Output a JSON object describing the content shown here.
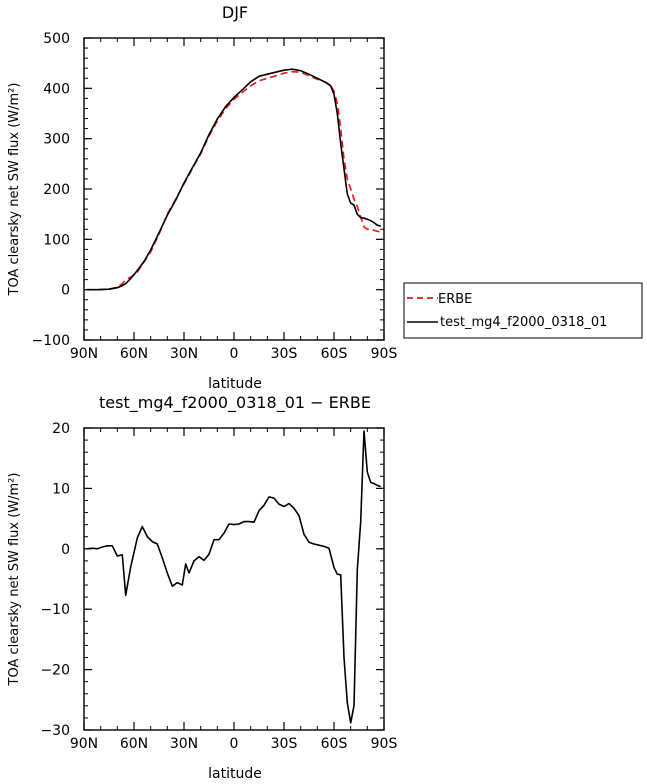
{
  "chart_data": [
    {
      "type": "line",
      "title": "DJF",
      "xlabel": "latitude",
      "ylabel": "TOA clearsky net SW flux (W/m²)",
      "xlim": [
        90,
        -90
      ],
      "ylim": [
        -100,
        500
      ],
      "x_ticks": [
        90,
        60,
        30,
        0,
        -30,
        -60,
        -90
      ],
      "x_tick_labels": [
        "90N",
        "60N",
        "30N",
        "0",
        "30S",
        "60S",
        "90S"
      ],
      "y_ticks": [
        -100,
        0,
        100,
        200,
        300,
        400,
        500
      ],
      "y_tick_labels": [
        "−100",
        "0",
        "100",
        "200",
        "300",
        "400",
        "500"
      ],
      "legend_position": "outside-right",
      "series": [
        {
          "name": "ERBE",
          "color": "#e41a1c",
          "dash": "dashed",
          "x": [
            88,
            82,
            75,
            70,
            67,
            65,
            62,
            58,
            54,
            50,
            45,
            40,
            35,
            30,
            25,
            20,
            15,
            10,
            5,
            0,
            -5,
            -10,
            -15,
            -20,
            -25,
            -30,
            -35,
            -40,
            -45,
            -50,
            -55,
            -58,
            -60,
            -62,
            -64,
            -66,
            -68,
            -70,
            -72,
            -74,
            -76,
            -78,
            -80,
            -82,
            -84,
            -86,
            -88
          ],
          "y": [
            0,
            0,
            1,
            5,
            12,
            20,
            25,
            35,
            55,
            75,
            110,
            150,
            180,
            210,
            240,
            270,
            305,
            335,
            360,
            378,
            392,
            405,
            415,
            420,
            425,
            430,
            433,
            432,
            425,
            418,
            412,
            405,
            395,
            370,
            320,
            260,
            220,
            200,
            180,
            165,
            145,
            125,
            120,
            120,
            118,
            116,
            115
          ]
        },
        {
          "name": "test_mg4_f2000_0318_01",
          "color": "#000000",
          "dash": "solid",
          "x": [
            88,
            82,
            75,
            70,
            67,
            65,
            62,
            58,
            54,
            50,
            45,
            40,
            35,
            30,
            25,
            20,
            15,
            10,
            5,
            0,
            -5,
            -10,
            -15,
            -20,
            -25,
            -30,
            -35,
            -40,
            -45,
            -50,
            -55,
            -58,
            -60,
            -62,
            -64,
            -66,
            -68,
            -70,
            -72,
            -74,
            -76,
            -78,
            -80,
            -82,
            -84,
            -86,
            -88
          ],
          "y": [
            0,
            0,
            1,
            4,
            8,
            12,
            22,
            38,
            56,
            79,
            113,
            148,
            178,
            212,
            242,
            272,
            308,
            339,
            364,
            382,
            397,
            413,
            424,
            428,
            432,
            436,
            438,
            435,
            428,
            420,
            412,
            405,
            388,
            350,
            290,
            240,
            190,
            172,
            168,
            150,
            143,
            142,
            140,
            137,
            133,
            128,
            126
          ]
        }
      ]
    },
    {
      "type": "line",
      "title": "test_mg4_f2000_0318_01 − ERBE",
      "xlabel": "latitude",
      "ylabel": "TOA clearsky net SW flux (W/m²)",
      "xlim": [
        90,
        -90
      ],
      "ylim": [
        -30,
        20
      ],
      "x_ticks": [
        90,
        60,
        30,
        0,
        -30,
        -60,
        -90
      ],
      "x_tick_labels": [
        "90N",
        "60N",
        "30N",
        "0",
        "30S",
        "60S",
        "90S"
      ],
      "y_ticks": [
        -30,
        -20,
        -10,
        0,
        10,
        20
      ],
      "y_tick_labels": [
        "−30",
        "−20",
        "−10",
        "0",
        "10",
        "20"
      ],
      "series": [
        {
          "name": "",
          "color": "#000000",
          "dash": "solid",
          "x": [
            88,
            85,
            82,
            79,
            76,
            73,
            70,
            67,
            65,
            62,
            58,
            55,
            52,
            49,
            46,
            43,
            40,
            37,
            34,
            31,
            29,
            27,
            24,
            21,
            18,
            15,
            12,
            9,
            6,
            3,
            0,
            -3,
            -6,
            -9,
            -12,
            -15,
            -18,
            -21,
            -24,
            -27,
            -30,
            -33,
            -36,
            -39,
            -42,
            -45,
            -48,
            -51,
            -54,
            -57,
            -60,
            -62,
            -64,
            -66,
            -68,
            -70,
            -72,
            -74,
            -76,
            -78,
            -80,
            -82,
            -84,
            -86,
            -88
          ],
          "y": [
            0,
            0.1,
            0,
            0.3,
            0.5,
            0.5,
            -1.2,
            -1,
            -7.7,
            -3,
            1.8,
            3.7,
            2,
            1.2,
            0.8,
            -1.5,
            -4,
            -6.2,
            -5.6,
            -6,
            -2.5,
            -4,
            -2,
            -1.3,
            -1.9,
            -0.9,
            1.5,
            1.5,
            2.6,
            4.1,
            4,
            4.1,
            4.5,
            4.5,
            4.4,
            6.3,
            7.2,
            8.6,
            8.4,
            7.4,
            7,
            7.5,
            6.7,
            5.5,
            2.4,
            1.1,
            0.8,
            0.6,
            0.4,
            0.1,
            -3.1,
            -4.2,
            -4.3,
            -18,
            -25.5,
            -28.8,
            -26,
            -3.5,
            4.5,
            19.5,
            12.7,
            11,
            10.8,
            10.5,
            10.3
          ]
        }
      ]
    }
  ]
}
